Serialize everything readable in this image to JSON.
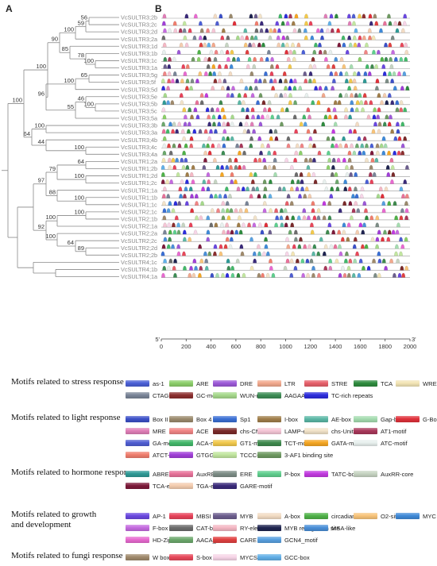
{
  "panels": {
    "a": "A",
    "b": "B"
  },
  "tree": {
    "leaves": [
      "VcSULTR3;2b",
      "VcSULTR3;2c",
      "VcSULTR3;2d",
      "VcSULTR3;2a",
      "VcSULTR3;1d",
      "VcSULTR3;1b",
      "VcSULTR3;1c",
      "VcSULTR3;1a",
      "VcSULTR3;5g",
      "VcSULTR3;5f",
      "VcSULTR3;5d",
      "VcSULTR3;5e",
      "VcSULTR3;5b",
      "VcSULTR3;5c",
      "VcSULTR3;5a",
      "VcSULTR3;3b",
      "VcSULTR3;3a",
      "VcSULTR3;4b",
      "VcSULTR3;4c",
      "VcSULTR3;4a",
      "VcSULTR1;2a",
      "VcSULTR1;2b",
      "VcSULTR1;2d",
      "VcSULTR1;2c",
      "VcSULTR1;1a",
      "VcSULTR1;1b",
      "VcSULTR1;1c",
      "VcSULTR2;1c",
      "VcSULTR2;1b",
      "VcSULTR2;1a",
      "VcSULTR2;2a",
      "VcSULTR2;2c",
      "VcSULTR2;2d",
      "VcSULTR2;2b",
      "VcSULTR4;1c",
      "VcSULTR4;1b",
      "VcSULTR4;1a"
    ],
    "bootstrap": [
      "56",
      "59",
      "100",
      "100",
      "78",
      "85",
      "90",
      "65",
      "100",
      "100",
      "46",
      "55",
      "96",
      "100",
      "100",
      "100",
      "44",
      "64",
      "100",
      "64",
      "100",
      "79",
      "100",
      "88",
      "97",
      "100",
      "100",
      "89",
      "64",
      "100",
      "92"
    ]
  },
  "axis": {
    "ticks": [
      "0",
      "200",
      "400",
      "600",
      "800",
      "1000",
      "1200",
      "1400",
      "1600",
      "1800",
      "2000"
    ],
    "left_end": "5'",
    "right_end": "3'"
  },
  "legend": {
    "sections": [
      {
        "title": "Motifs related to stress response",
        "items": [
          {
            "name": "as-1",
            "color": "#4a5fd6"
          },
          {
            "name": "ARE",
            "color": "#8ccf6a"
          },
          {
            "name": "DRE",
            "color": "#9c59d8"
          },
          {
            "name": "LTR",
            "color": "#f2a98d"
          },
          {
            "name": "STRE",
            "color": "#e7606a"
          },
          {
            "name": "TCA",
            "color": "#2e8b3e"
          },
          {
            "name": "WRE3",
            "color": "#f3e5b5"
          },
          {
            "name": "CTAG-motif",
            "color": "#7a8598"
          },
          {
            "name": "GC-motif",
            "color": "#8c2f2f"
          },
          {
            "name": "WUN-motif",
            "color": "#a6d98c"
          },
          {
            "name": "AAGAA-motif",
            "color": "#3d8d55"
          },
          {
            "name": "TC-rich repeats",
            "color": "#2c2ddd"
          }
        ]
      },
      {
        "title": "Motifs related to light response",
        "items": [
          {
            "name": "Box II",
            "color": "#3b50c8"
          },
          {
            "name": "Box 4",
            "color": "#9b8a6d"
          },
          {
            "name": "Sp1",
            "color": "#3a6fd4"
          },
          {
            "name": "I-box",
            "color": "#a07e4a"
          },
          {
            "name": "AE-box",
            "color": "#5bb8a6"
          },
          {
            "name": "Gap-box",
            "color": "#a5dcb0"
          },
          {
            "name": "G-Box",
            "color": "#e0303a"
          },
          {
            "name": "MRE",
            "color": "#e07fb8"
          },
          {
            "name": "ACE",
            "color": "#f08585"
          },
          {
            "name": "chs-CMA",
            "color": "#7a2a2a"
          },
          {
            "name": "LAMP-element",
            "color": "#f5c6d6"
          },
          {
            "name": "chs-Unit 1 m1",
            "color": "#f2e3c9"
          },
          {
            "name": "AT1-motif",
            "color": "#a8385a"
          },
          {
            "name": "GA-motif",
            "color": "#4f5ed2"
          },
          {
            "name": "ACA-motif",
            "color": "#43b86a"
          },
          {
            "name": "GT1-motif",
            "color": "#f2c94c"
          },
          {
            "name": "TCT-motif",
            "color": "#3f8a4e"
          },
          {
            "name": "GATA-motif",
            "color": "#f5a623"
          },
          {
            "name": "ATC-motif",
            "color": "#e8f0ee"
          },
          {
            "name": "ATCT-motif",
            "color": "#f07e6e"
          },
          {
            "name": "GTGGC-motif",
            "color": "#a13fd8"
          },
          {
            "name": "TCCC-motif",
            "color": "#c2e6a0"
          },
          {
            "name": "3-AF1 binding site",
            "color": "#6f9a62"
          }
        ]
      },
      {
        "title": "Motifs related to hormone response",
        "items": [
          {
            "name": "ABRE",
            "color": "#2f9a96"
          },
          {
            "name": "AuxRE",
            "color": "#e8729a"
          },
          {
            "name": "ERE",
            "color": "#7d8d86"
          },
          {
            "name": "P-box",
            "color": "#5fcf8e"
          },
          {
            "name": "TATC-box",
            "color": "#c23ae0"
          },
          {
            "name": "AuxRR-core",
            "color": "#c6d4c2"
          },
          {
            "name": "TCA-element",
            "color": "#7d1a3a"
          },
          {
            "name": "TGA-element",
            "color": "#f4cdb0"
          },
          {
            "name": "GARE-motif",
            "color": "#3a2a7a"
          }
        ]
      },
      {
        "title": "Motifs related to growth\nand development",
        "items": [
          {
            "name": "AP-1",
            "color": "#6a48e0"
          },
          {
            "name": "MBSI",
            "color": "#e8435a"
          },
          {
            "name": "MYB",
            "color": "#6c5e8e"
          },
          {
            "name": "A-box",
            "color": "#f3dcc4"
          },
          {
            "name": "circadian",
            "color": "#4fb248"
          },
          {
            "name": "O2-site",
            "color": "#f8c47a"
          },
          {
            "name": "MYC",
            "color": "#3f8ad8"
          },
          {
            "name": "F-box",
            "color": "#c56be0"
          },
          {
            "name": "CAT-box",
            "color": "#6d6d6d"
          },
          {
            "name": "RY-element",
            "color": "#f4b8c4"
          },
          {
            "name": "MYB recognition site",
            "color": "#1f2450"
          },
          {
            "name": "MSA-like",
            "color": "#4a8fd8"
          },
          {
            "name": "HD-Zip",
            "color": "#e86ad0"
          },
          {
            "name": "AACA_motif",
            "color": "#6ca86c"
          },
          {
            "name": "CARE",
            "color": "#e04040"
          },
          {
            "name": "GCN4_motif",
            "color": "#58a0e0"
          }
        ]
      },
      {
        "title": "Motifs related to fungi response",
        "items": [
          {
            "name": "W box",
            "color": "#a08a6c"
          },
          {
            "name": "S-box",
            "color": "#e8485a"
          },
          {
            "name": "MYCS1",
            "color": "#f7d6e8"
          },
          {
            "name": "GCC-box",
            "color": "#62b0e8"
          }
        ]
      }
    ]
  }
}
